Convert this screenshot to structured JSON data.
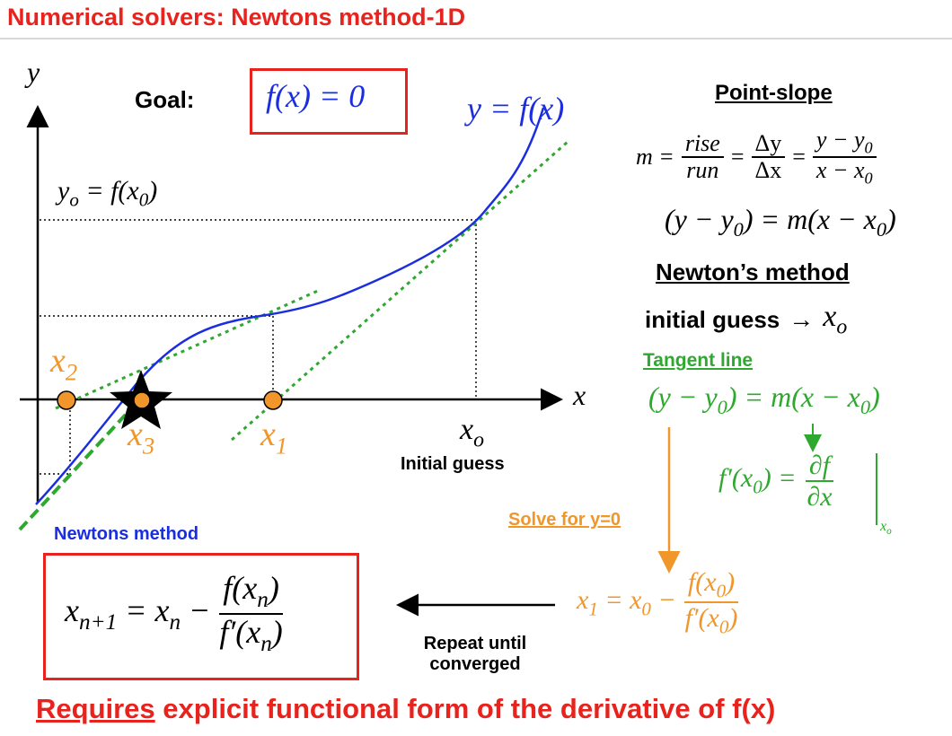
{
  "title": "Numerical solvers: Newtons method-1D",
  "graph": {
    "y_axis": "y",
    "x_axis": "x",
    "goal_label": "Goal:",
    "goal_eq": "f(x) = 0",
    "curve_label": "y = f(x)",
    "y0_label": "y",
    "y0_sub": "o",
    "y0_rhs": " = f(x",
    "y0_rhs_sub": "0",
    "y0_close": ")",
    "x2": "x",
    "x2_sub": "2",
    "x3": "x",
    "x3_sub": "3",
    "x1": "x",
    "x1_sub": "1",
    "xo": "x",
    "xo_sub": "o",
    "initial_guess": "Initial guess"
  },
  "point_slope": {
    "heading": "Point-slope",
    "m": "m =",
    "rise": "rise",
    "run": "run",
    "dy": "Δy",
    "dx": "Δx",
    "y_minus_y0": "y − y",
    "x_minus_x0": "x − x",
    "sub0": "0",
    "eq": "=",
    "line": "(y − y",
    "line_mid": ") = m(x − x",
    "line_end": ")"
  },
  "newton": {
    "heading": "Newton’s method",
    "initial": "initial guess",
    "arrow": "→",
    "xo": "x",
    "xo_sub": "o",
    "tangent_heading": "Tangent line",
    "tangent_a": "(y − y",
    "tangent_b": ") = m(x − x",
    "tangent_c": ")",
    "deriv_lhs": "f′(x",
    "deriv_lhs_end": ") =",
    "deriv_num": "∂f",
    "deriv_den": "∂x",
    "deriv_sub": "x",
    "deriv_sub_sub": "o",
    "solve": "Solve for y=0",
    "x1_lhs": "x",
    "x1_lhs_sub": "1",
    "x1_mid": " = x",
    "x1_mid_sub": "0",
    "x1_minus": " −",
    "x1_num": "f(x",
    "x1_num_end": ")",
    "x1_den": "f′(x",
    "x1_den_end": ")",
    "repeat": "Repeat until",
    "converged": "converged"
  },
  "method": {
    "heading": "Newtons method",
    "lhs": "x",
    "lhs_sub": "n+1",
    "mid": " = x",
    "mid_sub": "n",
    "minus": " −",
    "num": "f(x",
    "num_sub": "n",
    "num_end": ")",
    "den": "f′(x",
    "den_sub": "n",
    "den_end": ")"
  },
  "footer": {
    "requires": "Requires",
    "rest": " explicit functional form of the derivative of f(x)"
  },
  "colors": {
    "red": "#e8231d",
    "blue": "#1a2ee0",
    "green": "#2ea82e",
    "orange": "#f0962a",
    "black": "#000000"
  },
  "icons": [
    "star-icon",
    "arrow-left-icon",
    "arrow-down-icon"
  ]
}
